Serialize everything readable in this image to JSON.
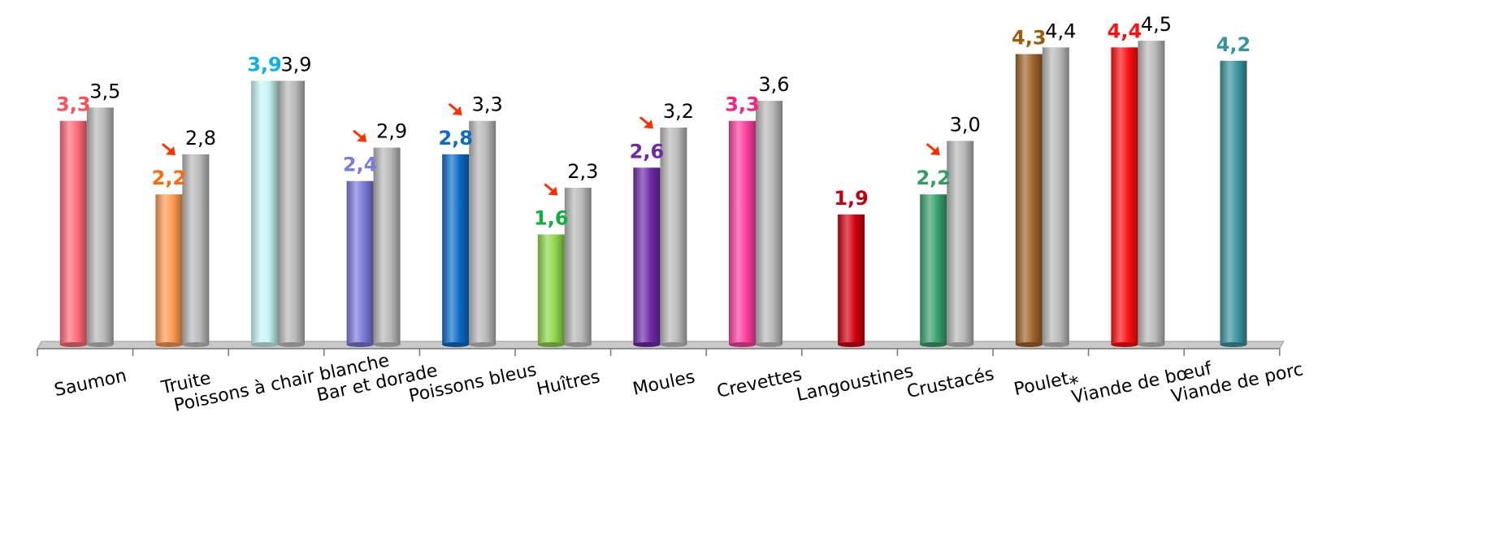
{
  "chart_data": {
    "type": "bar",
    "title": "",
    "xlabel": "",
    "ylabel": "",
    "ylim": [
      0,
      4.5
    ],
    "categories": [
      "Saumon",
      "Truite",
      "Poissons à chair blanche",
      "Bar et dorade",
      "Poissons bleus",
      "Huîtres",
      "Moules",
      "Crevettes",
      "Langoustines",
      "Crustacés",
      "Poulet",
      "Viande de bœuf",
      "Viande de porc"
    ],
    "category_marks": [
      "",
      "",
      "",
      "",
      "",
      "",
      "",
      "",
      "",
      "",
      "*",
      "",
      ""
    ],
    "series": [
      {
        "values": [
          3.3,
          2.2,
          3.9,
          2.4,
          2.8,
          1.6,
          2.6,
          3.3,
          1.9,
          2.2,
          4.3,
          4.4,
          4.2
        ],
        "labels": [
          "3,3",
          "2,2",
          "3,9",
          "2,4",
          "2,8",
          "1,6",
          "2,6",
          "3,3",
          "1,9",
          "2,2",
          "4,3",
          "4,4",
          "4,2"
        ],
        "colors": [
          "#ff6b78",
          "#ff9a50",
          "#c8f4f4",
          "#7b78d8",
          "#0a6cc6",
          "#8fd64a",
          "#6e2aa8",
          "#ff3fa0",
          "#d00010",
          "#3aa070",
          "#a0642a",
          "#ff1010",
          "#3a94a0"
        ],
        "label_colors": [
          "#ff5058",
          "#ff6a10",
          "#10b0e8",
          "#7c7cdc",
          "#0a6cc6",
          "#10b040",
          "#6e2aa8",
          "#ff2080",
          "#c00010",
          "#30a060",
          "#9a6010",
          "#ff1010",
          "#3a94a0"
        ],
        "decline_marker": [
          false,
          true,
          false,
          true,
          true,
          true,
          true,
          false,
          false,
          true,
          false,
          false,
          false
        ]
      },
      {
        "values": [
          3.5,
          2.8,
          3.9,
          2.9,
          3.3,
          2.3,
          3.2,
          3.6,
          null,
          3.0,
          4.4,
          4.5,
          null
        ],
        "labels": [
          "3,5",
          "2,8",
          "3,9",
          "2,9",
          "3,3",
          "2,3",
          "3,2",
          "3,6",
          "",
          "3,0",
          "4,4",
          "4,5",
          ""
        ],
        "color": "#b8b8b8"
      }
    ],
    "decline_arrow_color": "#ff3000"
  }
}
